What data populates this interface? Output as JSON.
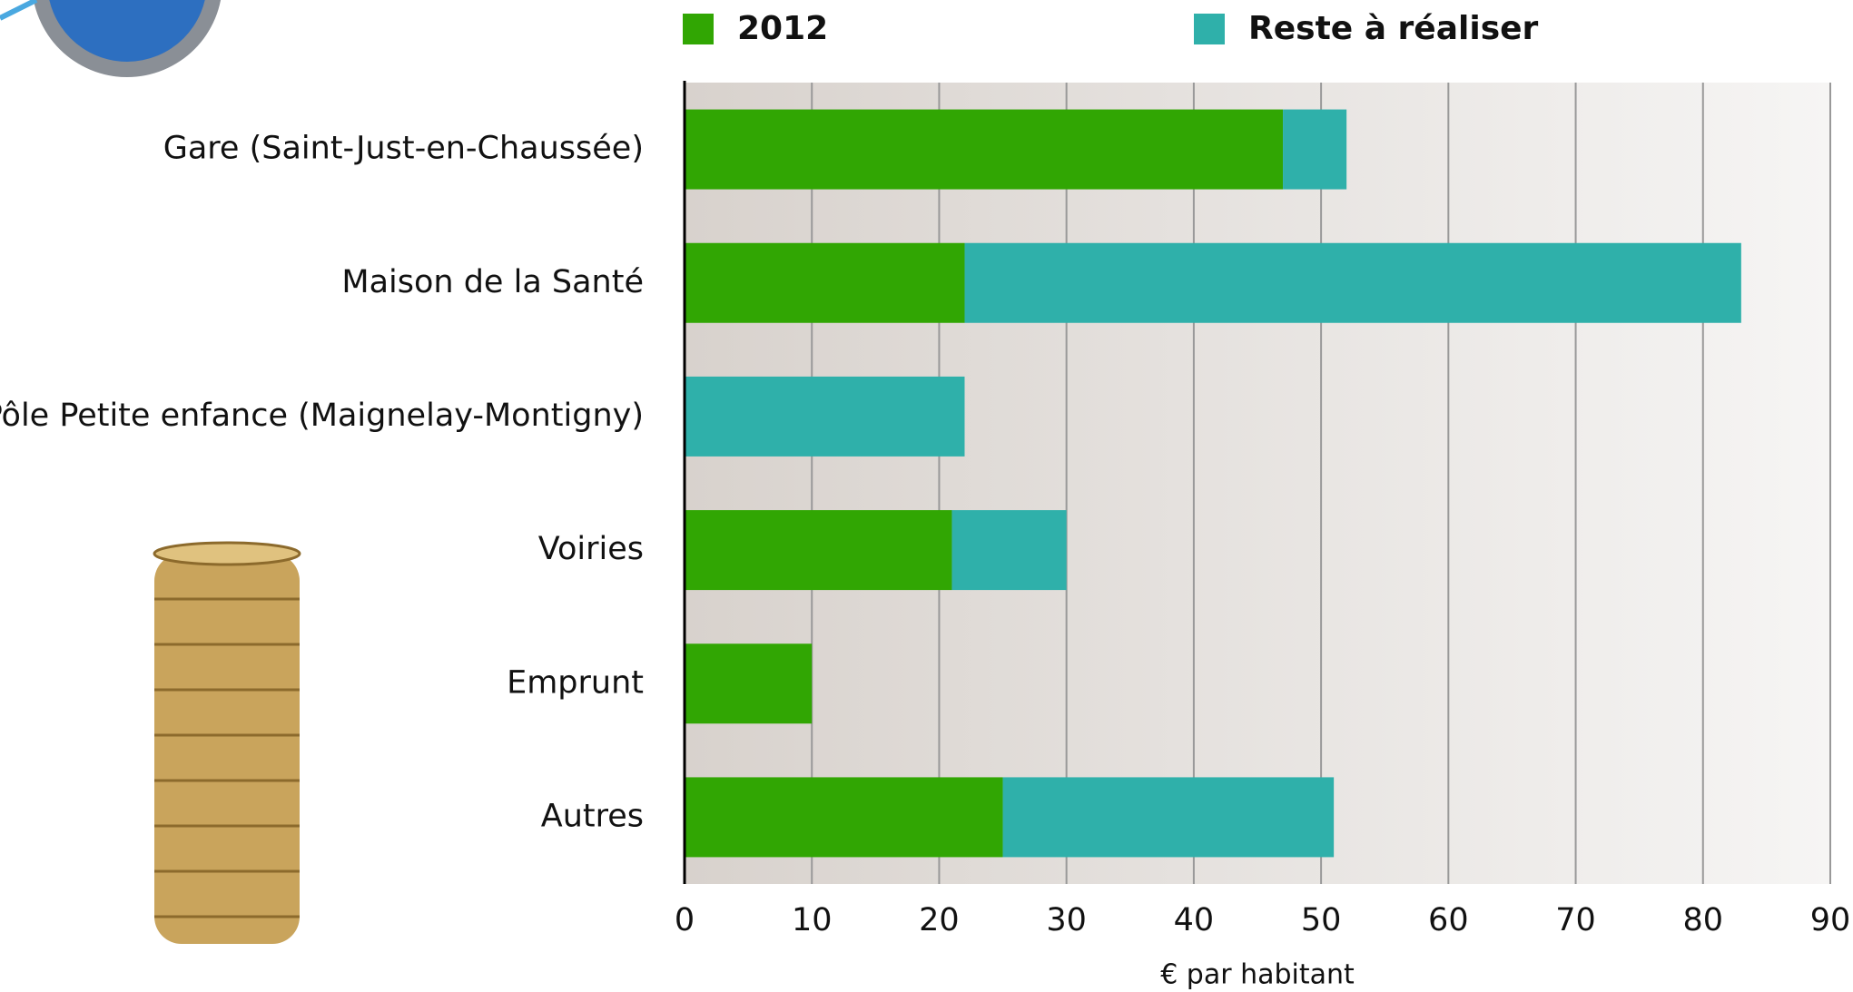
{
  "chart_data": {
    "type": "bar",
    "orientation": "horizontal",
    "stacked": true,
    "categories": [
      "Gare (Saint-Just-en-Chaussée)",
      "Maison de la Santé",
      "Pôle Petite enfance (Maignelay-Montigny)",
      "Voiries",
      "Emprunt",
      "Autres"
    ],
    "series": [
      {
        "name": "2012",
        "color": "#31a603",
        "values": [
          47,
          22,
          0,
          21,
          10,
          25
        ]
      },
      {
        "name": "Reste à réaliser",
        "color": "#2fb0aa",
        "values": [
          5,
          61,
          22,
          9,
          0,
          26
        ]
      }
    ],
    "xlim": [
      0,
      90
    ],
    "xticks": [
      0,
      10,
      20,
      30,
      40,
      50,
      60,
      70,
      80,
      90
    ],
    "xlabel": "€ par habitant",
    "grid": true,
    "legend": "top"
  }
}
